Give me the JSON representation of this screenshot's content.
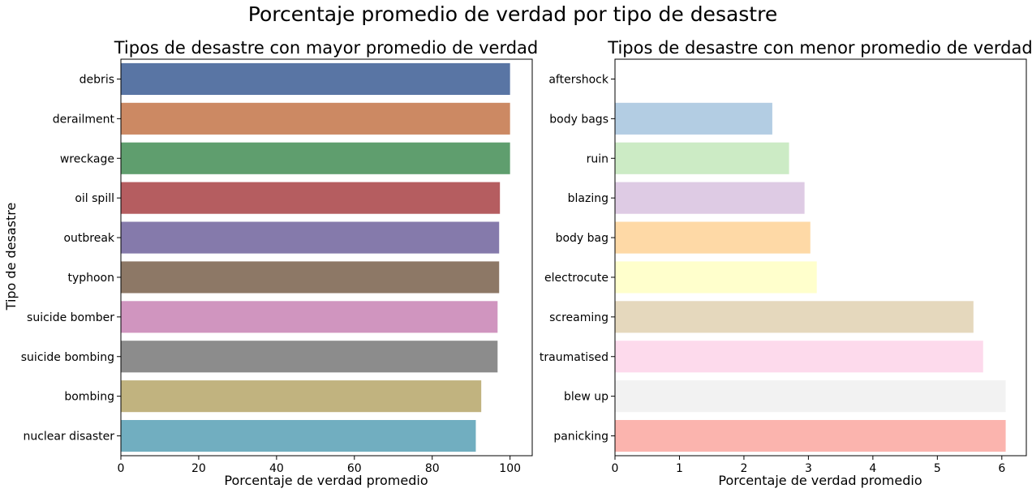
{
  "suptitle": "Porcentaje promedio de verdad por tipo de desastre",
  "chart_data": [
    {
      "type": "bar",
      "orientation": "horizontal",
      "title": "Tipos de desastre con mayor promedio de verdad",
      "xlabel": "Porcentaje de verdad promedio",
      "ylabel": "Tipo de desastre",
      "xlim": [
        0,
        105.7
      ],
      "xticks": [
        0,
        20,
        40,
        60,
        80,
        100
      ],
      "grid": false,
      "categories": [
        "debris",
        "derailment",
        "wreckage",
        "oil spill",
        "outbreak",
        "typhoon",
        "suicide bomber",
        "suicide bombing",
        "bombing",
        "nuclear disaster"
      ],
      "values": [
        100,
        100,
        100,
        97.4,
        97.2,
        97.2,
        96.8,
        96.8,
        92.6,
        91.2
      ],
      "colors": [
        "#5975a4",
        "#cc8963",
        "#5f9e6e",
        "#b55d60",
        "#857aab",
        "#8d7866",
        "#d095bf",
        "#8c8c8c",
        "#c1b37f",
        "#71aec0"
      ]
    },
    {
      "type": "bar",
      "orientation": "horizontal",
      "title": "Tipos de desastre con menor promedio de verdad",
      "xlabel": "Porcentaje de verdad promedio",
      "ylabel": "",
      "xlim": [
        0,
        6.38
      ],
      "xticks": [
        0,
        1,
        2,
        3,
        4,
        5,
        6
      ],
      "grid": false,
      "categories": [
        "aftershock",
        "body bags",
        "ruin",
        "blazing",
        "body bag",
        "electrocute",
        "screaming",
        "traumatised",
        "blew up",
        "panicking"
      ],
      "values": [
        0,
        2.44,
        2.7,
        2.94,
        3.03,
        3.13,
        5.56,
        5.71,
        6.06,
        6.06
      ],
      "colors": [
        "#fbb4ae",
        "#b3cde3",
        "#ccebc5",
        "#decbe4",
        "#fed9a6",
        "#ffffcc",
        "#e5d8bd",
        "#fddaec",
        "#f2f2f2",
        "#fbb4ae"
      ]
    }
  ]
}
